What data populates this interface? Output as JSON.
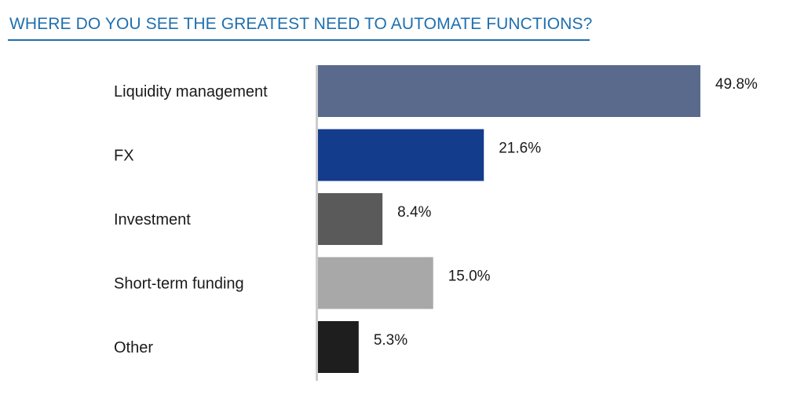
{
  "chart_data": {
    "type": "bar",
    "orientation": "horizontal",
    "title": "WHERE DO YOU SEE THE GREATEST NEED TO AUTOMATE FUNCTIONS?",
    "categories": [
      "Liquidity management",
      "FX",
      "Investment",
      "Short-term funding",
      "Other"
    ],
    "values": [
      49.8,
      21.6,
      8.4,
      15.0,
      5.3
    ],
    "value_labels": [
      "49.8%",
      "21.6%",
      "8.4%",
      "15.0%",
      "5.3%"
    ],
    "colors": [
      "#5a6a8c",
      "#143c8c",
      "#5a5a5a",
      "#a8a8a8",
      "#1e1e1e"
    ],
    "axis_color": "#cccccc",
    "xlim": [
      0,
      50
    ],
    "grid": false,
    "legend": "none"
  },
  "colors": {
    "title": "#1f6fae"
  }
}
